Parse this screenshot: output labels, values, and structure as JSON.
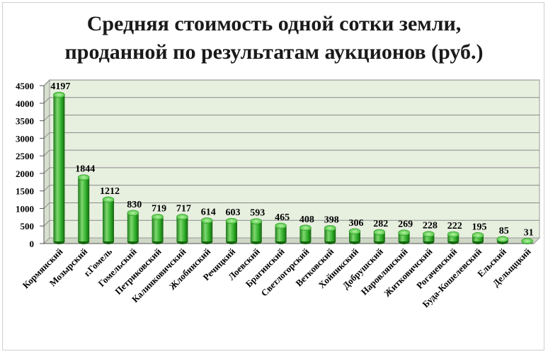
{
  "chart_data": {
    "type": "bar",
    "title": "Средняя стоимость одной сотки земли,",
    "subtitle": "проданной по результатам аукционов (руб.)",
    "xlabel": "",
    "ylabel": "",
    "ylim": [
      0,
      4500
    ],
    "yticks": [
      0,
      500,
      1000,
      1500,
      2000,
      2500,
      3000,
      3500,
      4000,
      4500
    ],
    "grid": true,
    "legend": "none",
    "categories": [
      "Кормянский",
      "Мозырский",
      "г.Гомель",
      "Гомельский",
      "Петриковский",
      "Калинковичский",
      "Жлобинский",
      "Речицкий",
      "Лоевский",
      "Брагинский",
      "Светлогорский",
      "Ветковский",
      "Хойникский",
      "Добрушский",
      "Наровлянский",
      "Житковичский",
      "Рогачевский",
      "Буда-Кошелевский",
      "Ельский",
      "Дельщцкий"
    ],
    "values": [
      4197,
      1844,
      1212,
      830,
      719,
      717,
      614,
      603,
      593,
      465,
      408,
      398,
      306,
      282,
      269,
      228,
      222,
      195,
      85,
      31
    ],
    "colors": {
      "bar": "#33b52e",
      "bar_dark": "#1d7a19",
      "bar_light": "#8fe47f",
      "plot_back": "#e7efdf",
      "grid": "#8a8a8a"
    }
  }
}
